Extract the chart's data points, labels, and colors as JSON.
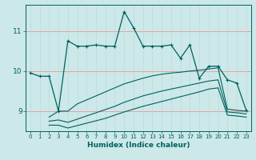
{
  "xlabel": "Humidex (Indice chaleur)",
  "bg_color": "#cce8e8",
  "line_color": "#006060",
  "grid_color_h": "#e8a0a0",
  "grid_color_v": "#b8d8d8",
  "xlim": [
    -0.5,
    23.5
  ],
  "ylim": [
    8.5,
    11.65
  ],
  "yticks": [
    9,
    10,
    11
  ],
  "xticks": [
    0,
    1,
    2,
    3,
    4,
    5,
    6,
    7,
    8,
    9,
    10,
    11,
    12,
    13,
    14,
    15,
    16,
    17,
    18,
    19,
    20,
    21,
    22,
    23
  ],
  "line_main_x": [
    0,
    1,
    2,
    3,
    4,
    5,
    6,
    7,
    8,
    9,
    10,
    11,
    12,
    13,
    14,
    15,
    16,
    17,
    18,
    19,
    20,
    21,
    22,
    23
  ],
  "line_main_y": [
    9.95,
    9.87,
    9.87,
    9.0,
    10.75,
    10.62,
    10.62,
    10.65,
    10.62,
    10.62,
    11.48,
    11.08,
    10.62,
    10.62,
    10.62,
    10.65,
    10.32,
    10.65,
    9.82,
    10.12,
    10.12,
    9.78,
    9.7,
    9.02
  ],
  "line_top_x": [
    2,
    3,
    4,
    5,
    6,
    7,
    8,
    9,
    10,
    11,
    12,
    13,
    14,
    15,
    16,
    17,
    18,
    19,
    20,
    21,
    22,
    23
  ],
  "line_top_y": [
    8.85,
    9.0,
    9.0,
    9.18,
    9.28,
    9.38,
    9.48,
    9.58,
    9.68,
    9.75,
    9.82,
    9.88,
    9.92,
    9.95,
    9.97,
    10.0,
    10.02,
    10.05,
    10.08,
    9.05,
    9.02,
    9.0
  ],
  "line_mid_x": [
    2,
    3,
    4,
    5,
    6,
    7,
    8,
    9,
    10,
    11,
    12,
    13,
    14,
    15,
    16,
    17,
    18,
    19,
    20,
    21,
    22,
    23
  ],
  "line_mid_y": [
    8.75,
    8.78,
    8.72,
    8.8,
    8.88,
    8.96,
    9.04,
    9.12,
    9.22,
    9.3,
    9.38,
    9.44,
    9.5,
    9.55,
    9.6,
    9.65,
    9.7,
    9.75,
    9.78,
    8.98,
    8.96,
    8.93
  ],
  "line_bot_x": [
    2,
    3,
    4,
    5,
    6,
    7,
    8,
    9,
    10,
    11,
    12,
    13,
    14,
    15,
    16,
    17,
    18,
    19,
    20,
    21,
    22,
    23
  ],
  "line_bot_y": [
    8.65,
    8.65,
    8.58,
    8.64,
    8.7,
    8.76,
    8.82,
    8.9,
    8.98,
    9.05,
    9.12,
    9.18,
    9.24,
    9.3,
    9.36,
    9.42,
    9.48,
    9.55,
    9.58,
    8.9,
    8.88,
    8.85
  ]
}
